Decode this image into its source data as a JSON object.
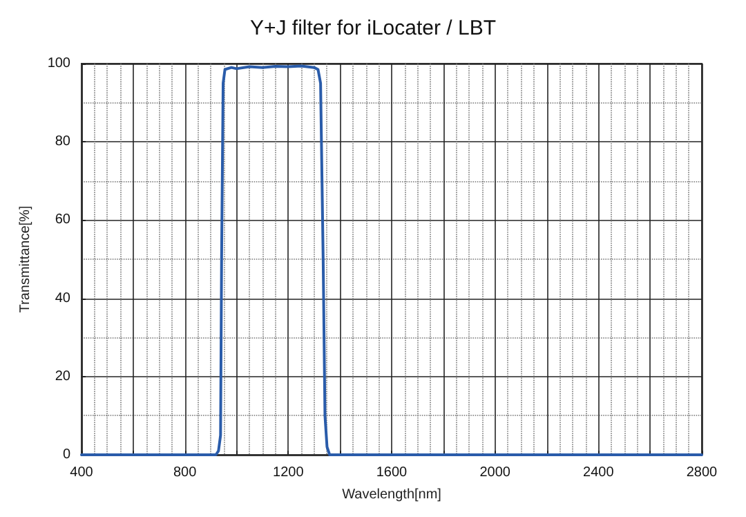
{
  "chart_data": {
    "type": "line",
    "title": "Y+J filter for iLocater / LBT",
    "xlabel": "Wavelength[nm]",
    "ylabel": "Transmittance[%]",
    "series": [
      {
        "color": "#2a5caa",
        "x": [
          400,
          920,
          930,
          938,
          942,
          948,
          955,
          980,
          1000,
          1050,
          1100,
          1150,
          1200,
          1250,
          1300,
          1315,
          1325,
          1335,
          1342,
          1350,
          1360,
          2800
        ],
        "values": [
          0,
          0,
          1,
          5,
          50,
          95,
          98.5,
          99,
          98.7,
          99.2,
          99,
          99.3,
          99.2,
          99.4,
          99,
          98.5,
          95,
          50,
          10,
          2,
          0,
          0
        ]
      }
    ],
    "xlim": [
      400,
      2800
    ],
    "xticks": [
      400,
      {
        "value": 600,
        "label": null
      },
      800,
      {
        "value": 1000,
        "label": null
      },
      1200,
      {
        "value": 1400,
        "label": null
      },
      1600,
      {
        "value": 1800,
        "label": null
      },
      2000,
      {
        "value": 2200,
        "label": null
      },
      2400,
      {
        "value": 2600,
        "label": null
      },
      2800
    ],
    "ylim": [
      0,
      100
    ],
    "yticks": [
      0,
      20,
      40,
      60,
      80,
      100
    ],
    "grid": true,
    "marker": "none",
    "line_style": "solid"
  }
}
